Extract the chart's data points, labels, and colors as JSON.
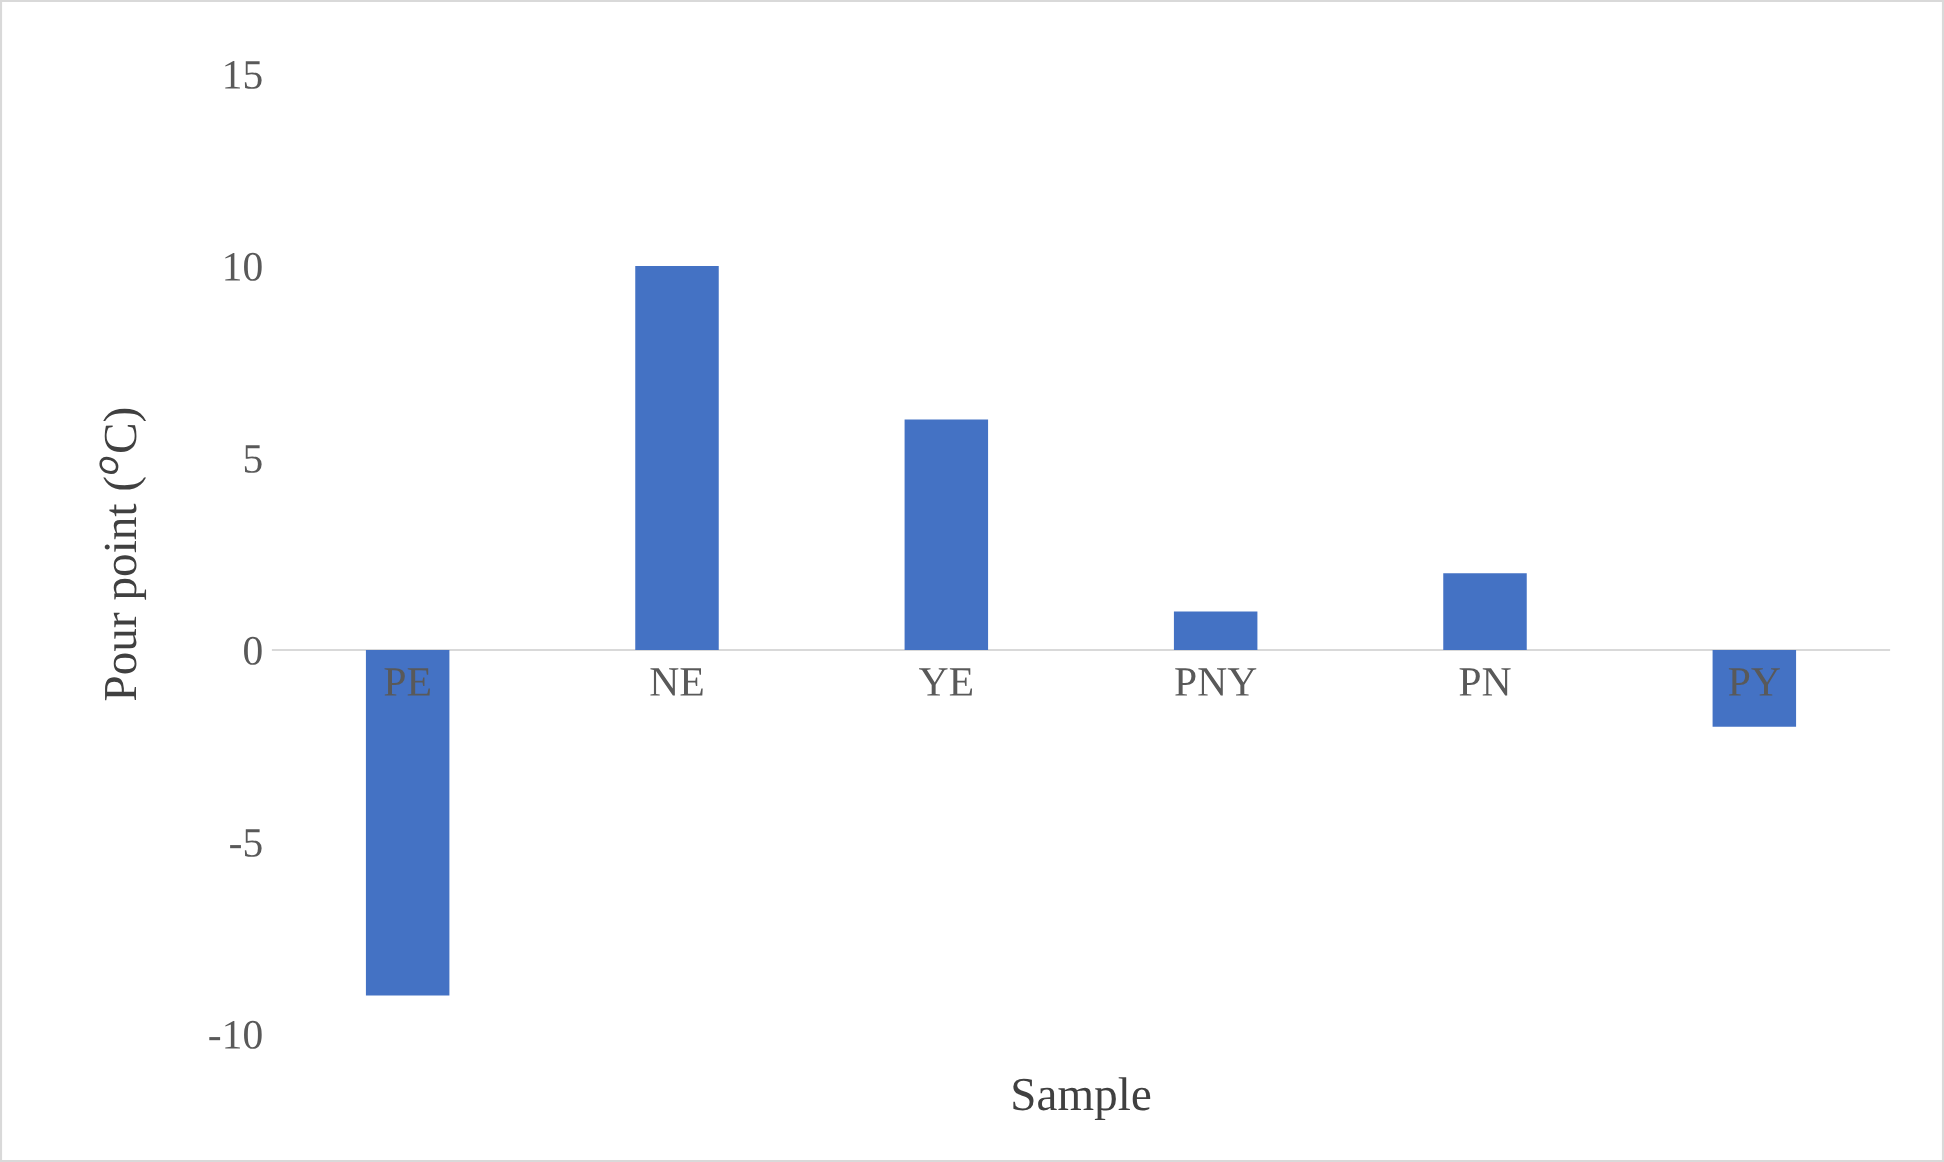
{
  "chart_data": {
    "type": "bar",
    "xlabel": "Sample",
    "ylabel": "Pour point ($^{o}$C)",
    "categories": [
      "PE",
      "NE",
      "YE",
      "PNY",
      "PN",
      "PY"
    ],
    "values": [
      -9,
      10,
      6,
      1,
      2,
      -2
    ],
    "color": "#4472c4",
    "ylim": [
      -10,
      15
    ],
    "yticks": [
      -10,
      -5,
      0,
      5,
      10,
      15
    ],
    "grid": false
  }
}
